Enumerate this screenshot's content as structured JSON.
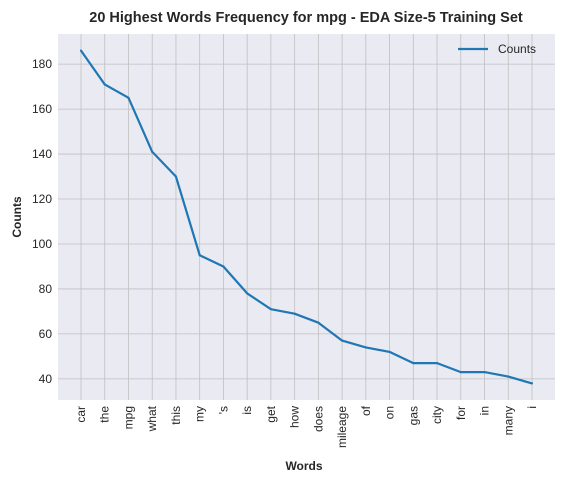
{
  "chart_data": {
    "type": "line",
    "title": "20 Highest Words Frequency for mpg - EDA Size-5 Training Set",
    "xlabel": "Words",
    "ylabel": "Counts",
    "categories": [
      "car",
      "the",
      "mpg",
      "what",
      "this",
      "my",
      "'s",
      "is",
      "get",
      "how",
      "does",
      "mileage",
      "of",
      "on",
      "gas",
      "city",
      "for",
      "in",
      "many",
      "i"
    ],
    "series": [
      {
        "name": "Counts",
        "values": [
          186,
          171,
          165,
          141,
          130,
          95,
          90,
          78,
          71,
          69,
          65,
          57,
          54,
          52,
          47,
          47,
          43,
          43,
          41,
          38
        ]
      }
    ],
    "ylim": [
      30.6,
      193.4
    ],
    "yticks": [
      40,
      60,
      80,
      100,
      120,
      140,
      160,
      180
    ],
    "grid": true,
    "legend_position": "top-right",
    "colors": {
      "line": "#1f77b4",
      "plot_bg": "#eaeaf2",
      "grid": "#c0c0c0"
    }
  }
}
